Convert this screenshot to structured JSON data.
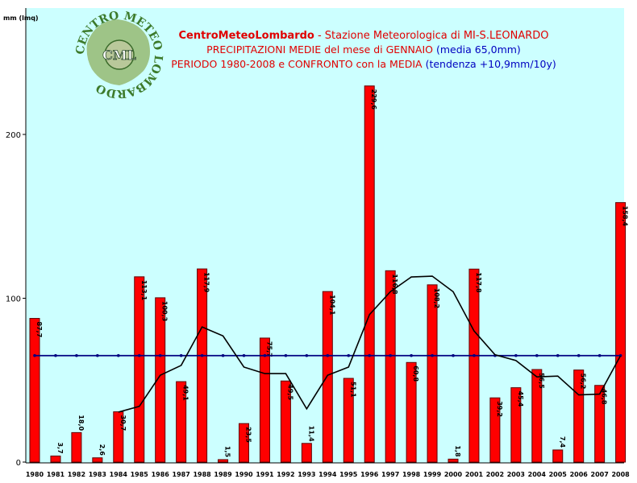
{
  "chart_data": {
    "type": "bar",
    "ylabel": "mm (lmq)",
    "title_parts": [
      {
        "text": "CentroMeteoLombardo",
        "color": "#e00000",
        "bold": true
      },
      {
        "text": " - Stazione Meteorologica di MI-S.LEONARDO",
        "color": "#e00000",
        "bold": false
      }
    ],
    "subtitle1_parts": [
      {
        "text": "PRECIPITAZIONI MEDIE del mese di GENNAIO ",
        "color": "#e00000"
      },
      {
        "text": "(media 65,0mm)",
        "color": "#0000c0"
      }
    ],
    "subtitle2_parts": [
      {
        "text": "PERIODO 1980-2008 e CONFRONTO con la MEDIA ",
        "color": "#e00000"
      },
      {
        "text": "(tendenza +10,9mm/10y)",
        "color": "#0000c0"
      }
    ],
    "ylim": [
      0,
      250
    ],
    "yticks": [
      0,
      100,
      200
    ],
    "categories": [
      "1980",
      "1981",
      "1982",
      "1983",
      "1984",
      "1985",
      "1986",
      "1987",
      "1988",
      "1989",
      "1990",
      "1991",
      "1992",
      "1993",
      "1994",
      "1995",
      "1996",
      "1997",
      "1998",
      "1999",
      "2000",
      "2001",
      "2002",
      "2003",
      "2004",
      "2005",
      "2006",
      "2007",
      "2008"
    ],
    "value_labels": [
      "87,7",
      "3,7",
      "18,0",
      "2,6",
      "30,7",
      "113,1",
      "100,3",
      "49,1",
      "117,9",
      "1,5",
      "23,5",
      "75,7",
      "49,5",
      "11,4",
      "104,1",
      "51,1",
      "229,6",
      "116,8",
      "60,8",
      "108,2",
      "1,8",
      "117,8",
      "39,2",
      "45,4",
      "56,5",
      "7,4",
      "56,2",
      "46,8",
      "158,4"
    ],
    "series": [
      {
        "type": "bar",
        "values": [
          87.7,
          3.7,
          18.0,
          2.6,
          30.7,
          113.1,
          100.3,
          49.1,
          117.9,
          1.5,
          23.5,
          75.7,
          49.5,
          11.4,
          104.1,
          51.1,
          229.6,
          116.8,
          60.8,
          108.2,
          1.8,
          117.8,
          39.2,
          45.4,
          56.5,
          7.4,
          56.2,
          46.8,
          158.4
        ]
      },
      {
        "type": "line",
        "values": [
          null,
          null,
          null,
          null,
          30.5,
          34.0,
          53.0,
          59.0,
          82.5,
          77.0,
          58.0,
          54.0,
          54.0,
          32.5,
          53.0,
          58.0,
          90.0,
          104.0,
          113.0,
          113.5,
          104.0,
          80.0,
          65.5,
          62.0,
          52.0,
          52.5,
          41.0,
          41.5,
          65.0
        ]
      },
      {
        "type": "line",
        "values": [
          65.0,
          65.0,
          65.0,
          65.0,
          65.0,
          65.0,
          65.0,
          65.0,
          65.0,
          65.0,
          65.0,
          65.0,
          65.0,
          65.0,
          65.0,
          65.0,
          65.0,
          65.0,
          65.0,
          65.0,
          65.0,
          65.0,
          65.0,
          65.0,
          65.0,
          65.0,
          65.0,
          65.0,
          65.0
        ]
      }
    ],
    "colors": {
      "page_background": "#ffffff",
      "plot_background": "#ccffff",
      "bar": "#ff0000",
      "bar_outline": "#600000",
      "moving_average": "#000000",
      "mean_line": "#000080"
    },
    "grid": false,
    "legend": "none"
  },
  "logo": {
    "ring_text": "CENTRO METEO LOMBARDO",
    "center_text": "CML"
  }
}
